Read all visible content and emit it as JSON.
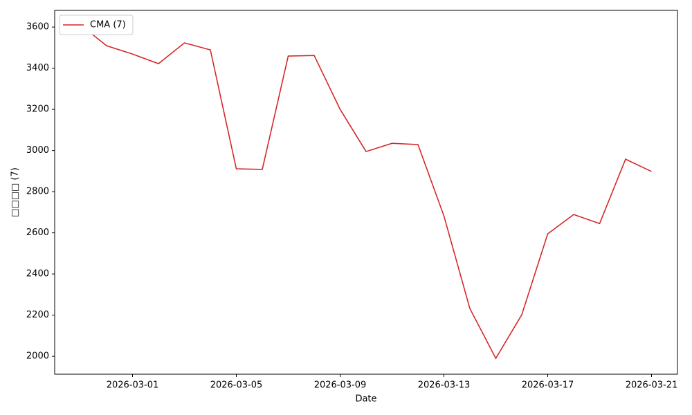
{
  "chart_data": {
    "type": "line",
    "x": [
      "2026-02-27",
      "2026-02-28",
      "2026-03-01",
      "2026-03-02",
      "2026-03-03",
      "2026-03-04",
      "2026-03-05",
      "2026-03-06",
      "2026-03-07",
      "2026-03-08",
      "2026-03-09",
      "2026-03-10",
      "2026-03-11",
      "2026-03-12",
      "2026-03-13",
      "2026-03-14",
      "2026-03-15",
      "2026-03-16",
      "2026-03-17",
      "2026-03-18",
      "2026-03-19",
      "2026-03-20",
      "2026-03-21"
    ],
    "series": [
      {
        "name": "CMA (7)",
        "color": "#d62728",
        "values": [
          3610,
          3509,
          3469,
          3422,
          3523,
          3489,
          2911,
          2908,
          3459,
          3462,
          3200,
          2995,
          3035,
          3029,
          2682,
          2232,
          1990,
          2202,
          2595,
          2689,
          2645,
          2958,
          2898
        ]
      }
    ],
    "xlabel": "Date",
    "ylabel": "□□□□ (7)",
    "xlim": [
      "2026-02-26",
      "2026-03-22"
    ],
    "xticks": [
      "2026-03-01",
      "2026-03-05",
      "2026-03-09",
      "2026-03-13",
      "2026-03-17",
      "2026-03-21"
    ],
    "ylim": [
      1913,
      3681
    ],
    "yticks": [
      2000,
      2200,
      2400,
      2600,
      2800,
      3000,
      3200,
      3400,
      3600
    ],
    "grid": false,
    "legend": "upper left"
  }
}
